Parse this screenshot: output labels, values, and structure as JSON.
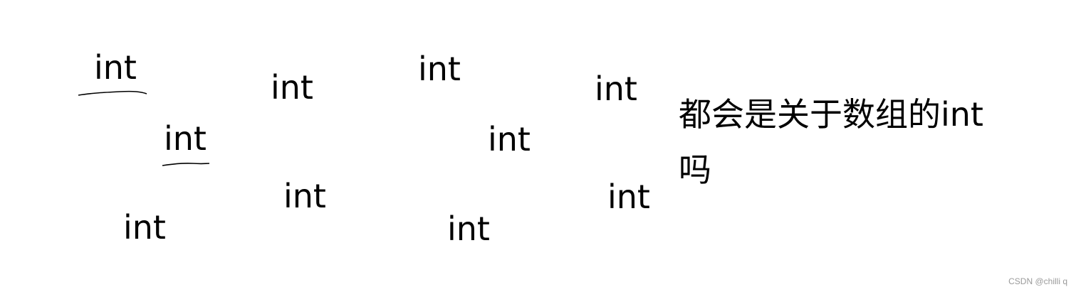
{
  "words": [
    "int",
    "int",
    "int",
    "int",
    "int",
    "int",
    "int",
    "int",
    "int",
    "int"
  ],
  "question": "都会是关于数组的int吗",
  "watermark": "CSDN @chilli q"
}
